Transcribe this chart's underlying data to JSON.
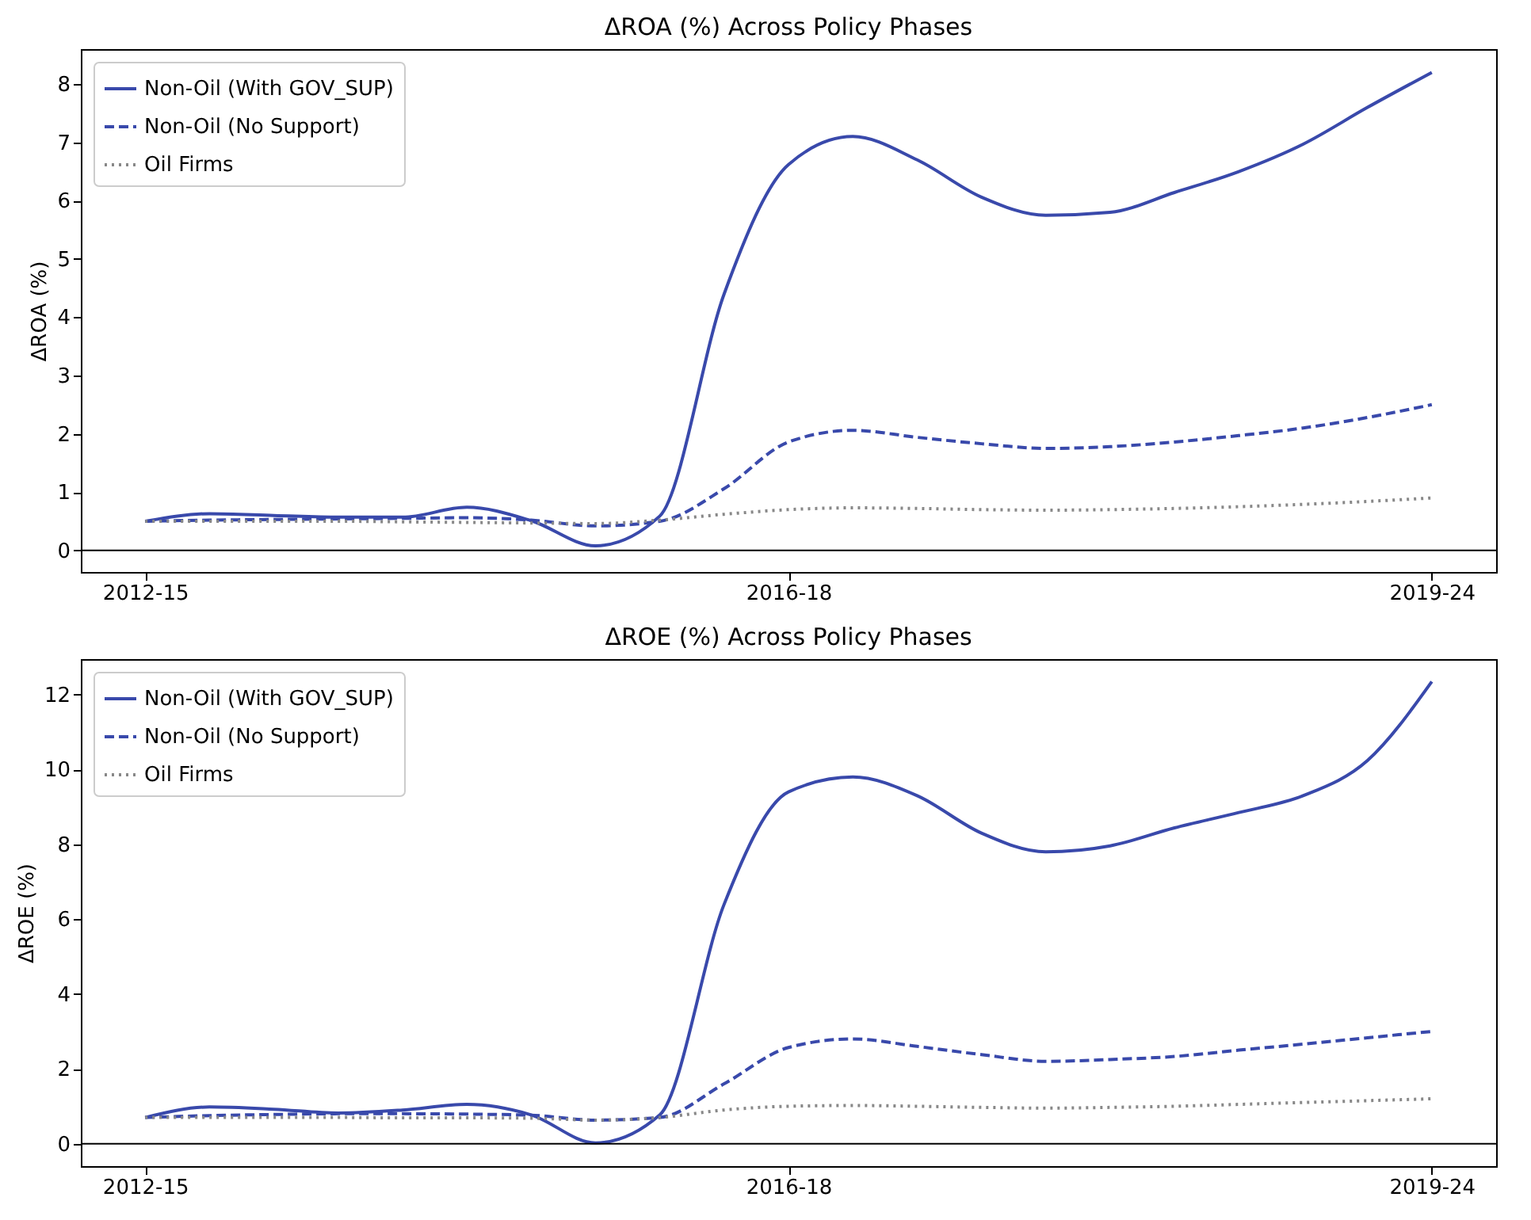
{
  "chart_data": [
    {
      "type": "line",
      "title": "ΔROA (%) Across Policy Phases",
      "ylabel": "ΔROA (%)",
      "categories": [
        "2012-15",
        null,
        null,
        null,
        null,
        null,
        null,
        null,
        null,
        null,
        "2016-18",
        null,
        null,
        null,
        null,
        null,
        null,
        null,
        null,
        null,
        "2019-24"
      ],
      "ylim": [
        -0.37,
        8.6
      ],
      "yticks": [
        0,
        1,
        2,
        3,
        4,
        5,
        6,
        7,
        8
      ],
      "legend": "top left",
      "ref_lines": [
        {
          "axis": "y",
          "value": 0,
          "label": null,
          "color": "#000000"
        }
      ],
      "series": [
        {
          "name": "Non-Oil (With GOV_SUP)",
          "color": "#3949ab",
          "line_style": "solid",
          "values": [
            0.5,
            0.63,
            0.6,
            0.57,
            0.57,
            0.74,
            0.51,
            0.08,
            0.59,
            4.4,
            6.62,
            7.1,
            6.7,
            6.06,
            5.75,
            5.8,
            6.14,
            6.5,
            6.97,
            7.6,
            8.2
          ]
        },
        {
          "name": "Non-Oil (No Support)",
          "color": "#3949ab",
          "line_style": "dashed",
          "values": [
            0.5,
            0.52,
            0.53,
            0.54,
            0.55,
            0.56,
            0.52,
            0.42,
            0.5,
            1.06,
            1.86,
            2.06,
            1.94,
            1.83,
            1.75,
            1.78,
            1.86,
            1.97,
            2.1,
            2.28,
            2.5
          ]
        },
        {
          "name": "Oil Firms",
          "color": "#888888",
          "line_style": "dotted",
          "values": [
            0.5,
            0.5,
            0.5,
            0.5,
            0.49,
            0.48,
            0.47,
            0.46,
            0.52,
            0.62,
            0.7,
            0.73,
            0.72,
            0.7,
            0.69,
            0.7,
            0.72,
            0.75,
            0.79,
            0.84,
            0.9
          ]
        }
      ]
    },
    {
      "type": "line",
      "title": "ΔROE (%) Across Policy Phases",
      "ylabel": "ΔROE (%)",
      "categories": [
        "2012-15",
        null,
        null,
        null,
        null,
        null,
        null,
        null,
        null,
        null,
        "2016-18",
        null,
        null,
        null,
        null,
        null,
        null,
        null,
        null,
        null,
        "2019-24"
      ],
      "ylim": [
        -0.6,
        12.95
      ],
      "yticks": [
        0,
        2,
        4,
        6,
        8,
        10,
        12
      ],
      "legend": "top left",
      "ref_lines": [
        {
          "axis": "y",
          "value": 0,
          "label": null,
          "color": "#000000"
        }
      ],
      "series": [
        {
          "name": "Non-Oil (With GOV_SUP)",
          "color": "#3949ab",
          "line_style": "solid",
          "values": [
            0.7,
            0.98,
            0.92,
            0.82,
            0.9,
            1.05,
            0.77,
            0.02,
            0.77,
            6.4,
            9.4,
            9.8,
            9.3,
            8.3,
            7.8,
            7.96,
            8.44,
            8.85,
            9.3,
            10.24,
            12.35
          ]
        },
        {
          "name": "Non-Oil (No Support)",
          "color": "#3949ab",
          "line_style": "dashed",
          "values": [
            0.7,
            0.75,
            0.78,
            0.8,
            0.8,
            0.79,
            0.76,
            0.63,
            0.7,
            1.6,
            2.57,
            2.8,
            2.6,
            2.38,
            2.2,
            2.25,
            2.33,
            2.5,
            2.66,
            2.83,
            3.0
          ]
        },
        {
          "name": "Oil Firms",
          "color": "#888888",
          "line_style": "dotted",
          "values": [
            0.7,
            0.7,
            0.7,
            0.7,
            0.69,
            0.69,
            0.68,
            0.63,
            0.7,
            0.9,
            1.0,
            1.02,
            1.0,
            0.97,
            0.95,
            0.97,
            1.0,
            1.05,
            1.1,
            1.15,
            1.2
          ]
        }
      ]
    }
  ]
}
